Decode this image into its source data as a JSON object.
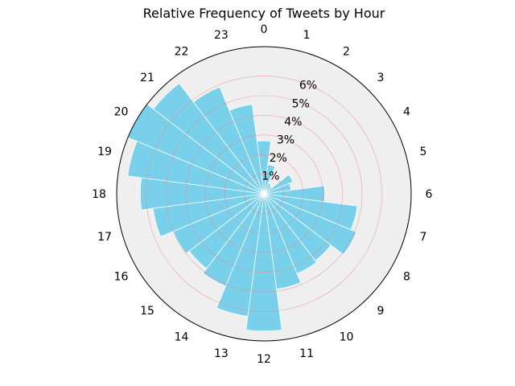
{
  "chart_data": {
    "type": "polar_bar",
    "title": "Relative Frequency of Tweets by Hour",
    "hour_labels": [
      "0",
      "1",
      "2",
      "3",
      "4",
      "5",
      "6",
      "7",
      "8",
      "9",
      "10",
      "11",
      "12",
      "13",
      "14",
      "15",
      "16",
      "17",
      "18",
      "19",
      "20",
      "21",
      "22",
      "23"
    ],
    "radial_tick_values": [
      1,
      2,
      3,
      4,
      5,
      6
    ],
    "radial_tick_labels": [
      "1%",
      "2%",
      "3%",
      "4%",
      "5%",
      "6%"
    ],
    "rlim": [
      0,
      7.5
    ],
    "theta_zero": "top",
    "theta_direction": "clockwise",
    "unit": "%",
    "values": [
      2.7,
      1.5,
      0.6,
      0.5,
      1.6,
      1.4,
      3.1,
      4.8,
      5.1,
      4.3,
      4.4,
      4.9,
      7.0,
      6.3,
      5.1,
      4.8,
      5.0,
      5.7,
      6.3,
      7.0,
      7.5,
      7.1,
      5.9,
      4.6
    ],
    "colors": {
      "bar": "#79d0ea",
      "bar_edge": "#ffffff",
      "background": "#efefef",
      "grid": "#f08080",
      "frame": "#000000"
    },
    "grid": true
  }
}
